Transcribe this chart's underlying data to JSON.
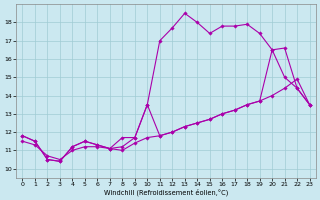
{
  "xlabel": "Windchill (Refroidissement éolien,°C)",
  "background_color": "#cbe8f0",
  "line_color": "#aa00aa",
  "xlim": [
    -0.5,
    23.5
  ],
  "ylim": [
    9.5,
    19.0
  ],
  "xticks": [
    0,
    1,
    2,
    3,
    4,
    5,
    6,
    7,
    8,
    9,
    10,
    11,
    12,
    13,
    14,
    15,
    16,
    17,
    18,
    19,
    20,
    21,
    22,
    23
  ],
  "yticks": [
    10,
    11,
    12,
    13,
    14,
    15,
    16,
    17,
    18
  ],
  "grid_color": "#a0ccd4",
  "curve1_x": [
    0,
    1,
    2,
    3,
    4,
    5,
    6,
    7,
    8,
    9,
    10,
    11,
    12,
    13,
    14,
    15,
    16,
    17,
    18,
    19,
    20,
    21,
    22,
    23
  ],
  "curve1_y": [
    11.8,
    11.5,
    10.5,
    10.4,
    11.2,
    11.5,
    11.3,
    11.1,
    11.2,
    11.7,
    13.5,
    17.0,
    17.7,
    18.5,
    18.0,
    17.4,
    17.8,
    17.8,
    17.9,
    17.4,
    16.5,
    15.0,
    14.4,
    13.5
  ],
  "curve2_x": [
    0,
    1,
    2,
    3,
    4,
    5,
    6,
    7,
    8,
    9,
    10,
    11,
    12,
    13,
    14,
    15,
    16,
    17,
    18,
    19,
    20,
    21,
    22,
    23
  ],
  "curve2_y": [
    11.5,
    11.3,
    10.7,
    10.5,
    11.0,
    11.2,
    11.2,
    11.1,
    11.0,
    11.4,
    11.7,
    11.8,
    12.0,
    12.3,
    12.5,
    12.7,
    13.0,
    13.2,
    13.5,
    13.7,
    14.0,
    14.4,
    14.9,
    13.5
  ],
  "curve3_x": [
    0,
    1,
    2,
    3,
    4,
    5,
    6,
    7,
    8,
    9,
    10,
    11,
    12,
    13,
    14,
    15,
    16,
    17,
    18,
    19,
    20,
    21,
    22,
    23
  ],
  "curve3_y": [
    11.8,
    11.5,
    10.5,
    10.4,
    11.2,
    11.5,
    11.3,
    11.1,
    11.7,
    11.7,
    13.5,
    11.8,
    12.0,
    12.3,
    12.5,
    12.7,
    13.0,
    13.2,
    13.5,
    13.7,
    16.5,
    16.6,
    14.4,
    13.5
  ]
}
